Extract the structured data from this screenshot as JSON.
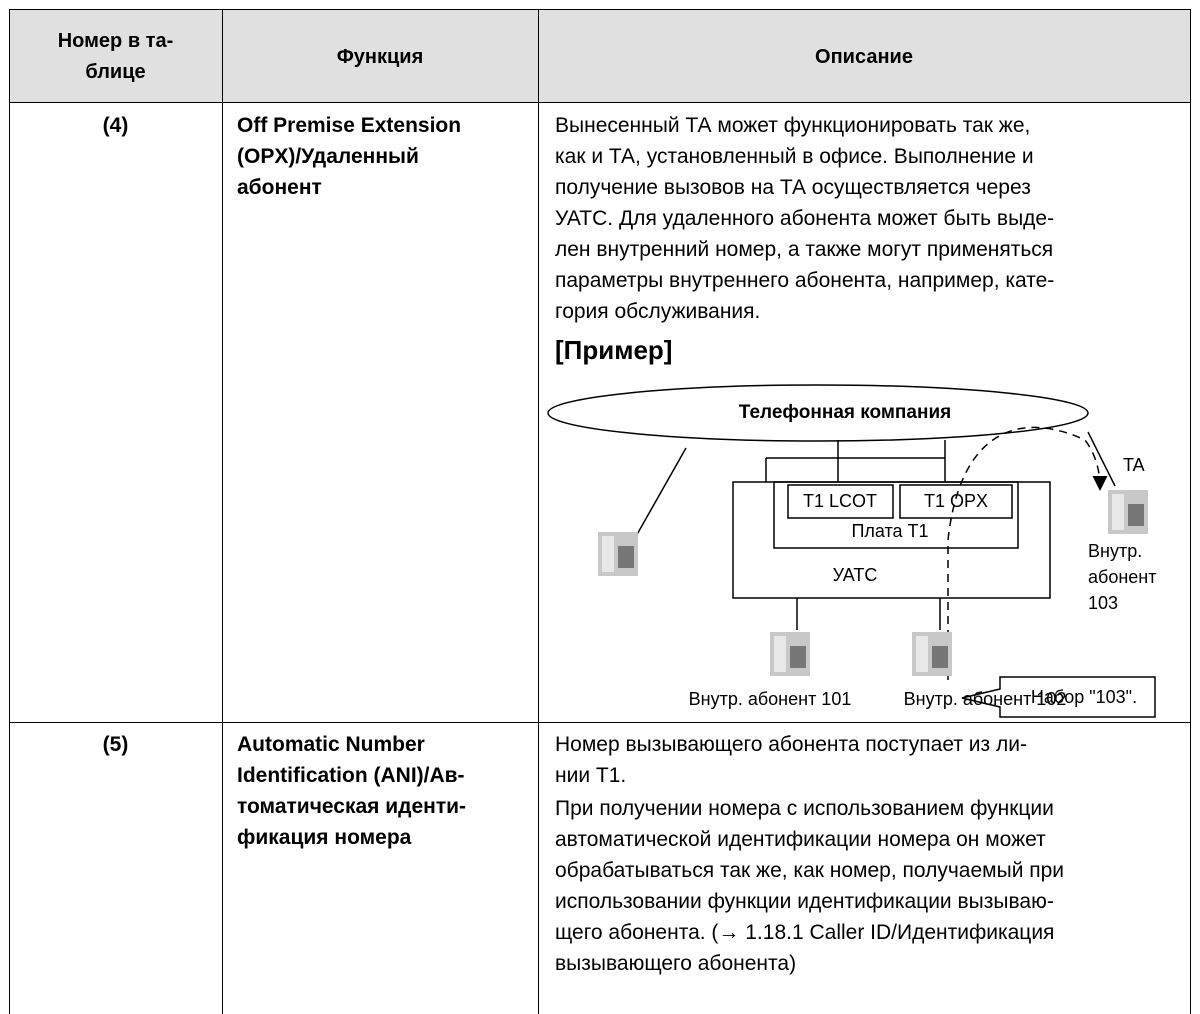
{
  "table": {
    "header": [
      [
        "Номер в та-",
        "блице"
      ],
      [
        "Функция"
      ],
      [
        "Описание"
      ]
    ],
    "rows": [
      {
        "number": "(4)",
        "function": [
          "Off Premise Extension",
          "(OPX)/Удаленный",
          "абонент"
        ],
        "description": [
          "Вынесенный ТА может функционировать так же,",
          "как и ТА, установленный в офисе. Выполнение и",
          "получение вызовов на ТА осуществляется через",
          "УАТС. Для удаленного абонента может быть выде-",
          "лен внутренний номер, а также могут применяться",
          "параметры внутреннего абонента, например, кате-",
          "гория обслуживания."
        ],
        "example": {
          "heading": "[Пример]",
          "diagram": {
            "company": "Телефонная компания",
            "card_lcot": "T1 LCOT",
            "card_opx": "T1 OPX",
            "card": "Плата T1",
            "pbx": "УАТС",
            "ta": "TA",
            "remote_ext": [
              "Внутр.",
              "абонент",
              "103"
            ],
            "ext_101": "Внутр. абонент 101",
            "ext_102": "Внутр. абонент 102",
            "callout": "Набор \"103\"."
          }
        }
      },
      {
        "number": "(5)",
        "function": [
          "Automatic Number",
          "Identification (ANI)/Ав-",
          "томатическая иденти-",
          "фикация номера"
        ],
        "description": [
          "Номер вызывающего абонента поступает из ли-",
          "нии T1.",
          "При получении номера с использованием функции",
          "автоматической идентификации номера он может",
          "обрабатываться так же, как номер, получаемый при",
          "использовании функции идентификации вызываю-",
          "щего абонента. (→ 1.18.1  Caller ID/Идентификация",
          "вызывающего абонента)"
        ]
      }
    ]
  }
}
